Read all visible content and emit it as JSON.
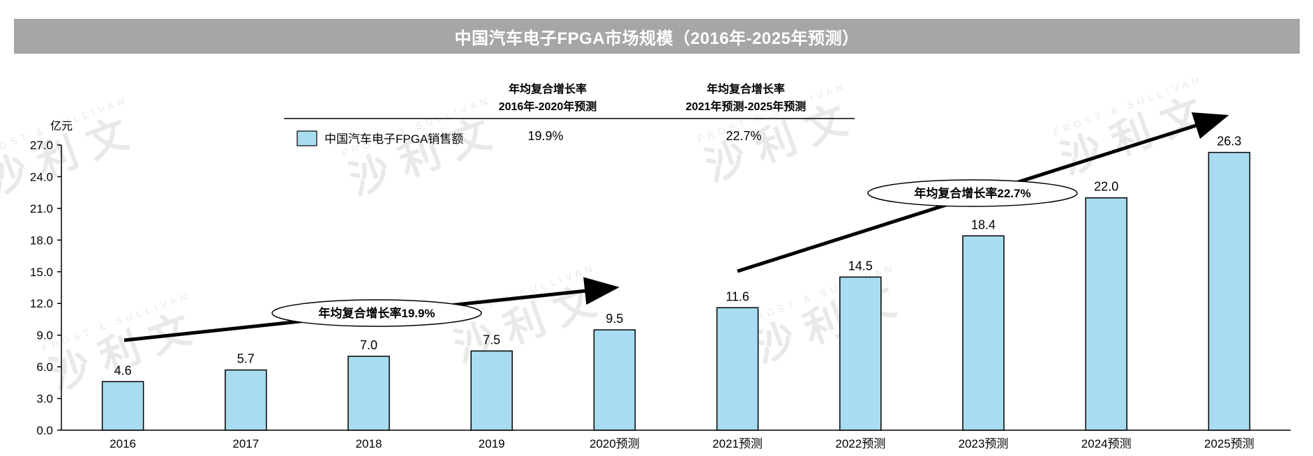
{
  "title": "中国汽车电子FPGA市场规模（2016年-2025年预测）",
  "watermark": {
    "text": "沙利文",
    "subtext": "FROST & SULLIVAN"
  },
  "cagr_table": {
    "headers": [
      {
        "line1": "年均复合增长率",
        "line2": "2016年-2020年预测"
      },
      {
        "line1": "年均复合增长率",
        "line2": "2021年预测-2025年预测"
      }
    ],
    "row_label": "中国汽车电子FPGA销售额",
    "values": [
      "19.9%",
      "22.7%"
    ]
  },
  "annotations": [
    {
      "text": "年均复合增长率19.9%"
    },
    {
      "text": "年均复合增长率22.7%"
    }
  ],
  "chart_data": {
    "type": "bar",
    "unit": "亿元",
    "categories": [
      "2016",
      "2017",
      "2018",
      "2019",
      "2020预测",
      "2021预测",
      "2022预测",
      "2023预测",
      "2024预测",
      "2025预测"
    ],
    "series": [
      {
        "name": "中国汽车电子FPGA销售额",
        "values": [
          4.6,
          5.7,
          7.0,
          7.5,
          9.5,
          11.6,
          14.5,
          18.4,
          22.0,
          26.3
        ]
      }
    ],
    "value_labels": [
      "4.6",
      "5.7",
      "7.0",
      "7.5",
      "9.5",
      "11.6",
      "14.5",
      "18.4",
      "22.0",
      "26.3"
    ],
    "y_ticks": [
      "0.0",
      "3.0",
      "6.0",
      "9.0",
      "12.0",
      "15.0",
      "18.0",
      "21.0",
      "24.0",
      "27.0"
    ],
    "ylim": [
      0,
      27
    ],
    "bar_color": "#a8dcf0",
    "grid": false,
    "legend_position": "top-left"
  }
}
